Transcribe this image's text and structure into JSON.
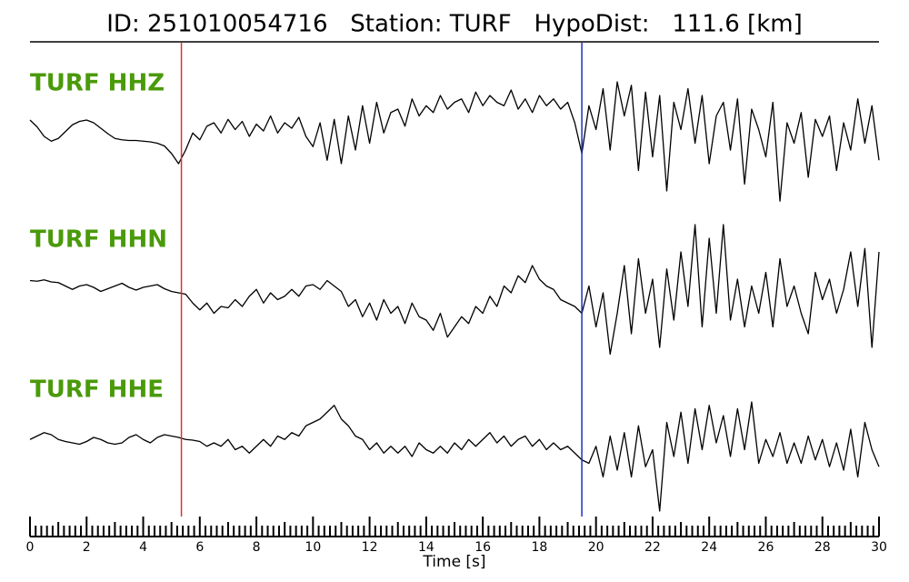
{
  "chart_data": {
    "type": "line",
    "title": "ID: 251010054716   Station: TURF   HypoDist:   111.6 [km]",
    "x_label": "Time [s]",
    "xlim": [
      0,
      30
    ],
    "xticks": [
      0,
      2,
      4,
      6,
      8,
      10,
      12,
      14,
      16,
      18,
      20,
      22,
      24,
      26,
      28,
      30
    ],
    "ylim": [
      -1,
      1
    ],
    "label_color": "#4a9a0a",
    "markers": [
      {
        "x": 5.35,
        "color": "#e03030"
      },
      {
        "x": 19.5,
        "color": "#2030c0"
      }
    ],
    "x": [
      0,
      0.25,
      0.5,
      0.75,
      1,
      1.25,
      1.5,
      1.75,
      2,
      2.25,
      2.5,
      2.75,
      3,
      3.25,
      3.5,
      3.75,
      4,
      4.25,
      4.5,
      4.75,
      5,
      5.25,
      5.5,
      5.75,
      6,
      6.25,
      6.5,
      6.75,
      7,
      7.25,
      7.5,
      7.75,
      8,
      8.25,
      8.5,
      8.75,
      9,
      9.25,
      9.5,
      9.75,
      10,
      10.25,
      10.5,
      10.75,
      11,
      11.25,
      11.5,
      11.75,
      12,
      12.25,
      12.5,
      12.75,
      13,
      13.25,
      13.5,
      13.75,
      14,
      14.25,
      14.5,
      14.75,
      15,
      15.25,
      15.5,
      15.75,
      16,
      16.25,
      16.5,
      16.75,
      17,
      17.25,
      17.5,
      17.75,
      18,
      18.25,
      18.5,
      18.75,
      19,
      19.25,
      19.5,
      19.75,
      20,
      20.25,
      20.5,
      20.75,
      21,
      21.25,
      21.5,
      21.75,
      22,
      22.25,
      22.5,
      22.75,
      23,
      23.25,
      23.5,
      23.75,
      24,
      24.25,
      24.5,
      24.75,
      25,
      25.25,
      25.5,
      25.75,
      26,
      26.25,
      26.5,
      26.75,
      27,
      27.25,
      27.5,
      27.75,
      28,
      28.25,
      28.5,
      28.75,
      29,
      29.25,
      29.5,
      29.75,
      30
    ],
    "series": [
      {
        "name": "TURF HHZ",
        "color": "#000000",
        "values": [
          0.24,
          0.14,
          0.0,
          -0.07,
          -0.03,
          0.07,
          0.17,
          0.22,
          0.24,
          0.2,
          0.12,
          0.04,
          -0.03,
          -0.05,
          -0.06,
          -0.06,
          -0.07,
          -0.08,
          -0.1,
          -0.14,
          -0.25,
          -0.4,
          -0.2,
          0.05,
          -0.05,
          0.15,
          0.2,
          0.05,
          0.25,
          0.1,
          0.22,
          0.0,
          0.18,
          0.08,
          0.3,
          0.05,
          0.2,
          0.12,
          0.28,
          0.0,
          -0.15,
          0.2,
          -0.35,
          0.25,
          -0.4,
          0.3,
          -0.2,
          0.45,
          -0.1,
          0.5,
          0.05,
          0.35,
          0.4,
          0.15,
          0.55,
          0.3,
          0.45,
          0.35,
          0.6,
          0.4,
          0.5,
          0.55,
          0.35,
          0.65,
          0.45,
          0.6,
          0.5,
          0.45,
          0.68,
          0.4,
          0.55,
          0.35,
          0.6,
          0.45,
          0.55,
          0.4,
          0.5,
          0.2,
          -0.25,
          0.45,
          0.1,
          0.7,
          -0.2,
          0.8,
          0.3,
          0.75,
          -0.5,
          0.65,
          -0.3,
          0.6,
          -0.8,
          0.5,
          0.1,
          0.7,
          -0.1,
          0.6,
          -0.4,
          0.3,
          0.5,
          -0.2,
          0.55,
          -0.7,
          0.4,
          0.1,
          -0.3,
          0.5,
          -0.95,
          0.2,
          -0.1,
          0.35,
          -0.6,
          0.25,
          0.0,
          0.3,
          -0.5,
          0.2,
          -0.2,
          0.55,
          -0.1,
          0.45,
          -0.35
        ]
      },
      {
        "name": "TURF HHN",
        "color": "#000000",
        "values": [
          0.18,
          0.17,
          0.19,
          0.16,
          0.15,
          0.1,
          0.05,
          0.1,
          0.12,
          0.08,
          0.02,
          0.06,
          0.1,
          0.14,
          0.08,
          0.04,
          0.08,
          0.1,
          0.12,
          0.06,
          0.02,
          0.0,
          -0.02,
          -0.15,
          -0.25,
          -0.15,
          -0.3,
          -0.2,
          -0.22,
          -0.1,
          -0.2,
          -0.05,
          0.05,
          -0.15,
          0.0,
          -0.1,
          -0.05,
          0.05,
          -0.05,
          0.1,
          0.12,
          0.05,
          0.18,
          0.1,
          0.02,
          -0.2,
          -0.1,
          -0.35,
          -0.15,
          -0.4,
          -0.1,
          -0.3,
          -0.2,
          -0.45,
          -0.15,
          -0.35,
          -0.4,
          -0.55,
          -0.3,
          -0.65,
          -0.5,
          -0.35,
          -0.45,
          -0.2,
          -0.3,
          -0.05,
          -0.2,
          0.1,
          0.0,
          0.25,
          0.15,
          0.4,
          0.2,
          0.1,
          0.05,
          -0.1,
          -0.15,
          -0.2,
          -0.3,
          0.1,
          -0.5,
          0.0,
          -0.9,
          -0.3,
          0.4,
          -0.6,
          0.5,
          -0.3,
          0.2,
          -0.8,
          0.35,
          -0.4,
          0.6,
          -0.2,
          1.0,
          -0.5,
          0.8,
          -0.3,
          1.0,
          -0.4,
          0.2,
          -0.5,
          0.1,
          -0.3,
          0.3,
          -0.5,
          0.5,
          -0.2,
          0.1,
          -0.3,
          -0.6,
          0.3,
          -0.1,
          0.2,
          -0.3,
          0.05,
          0.6,
          -0.2,
          0.65,
          -0.8,
          0.6
        ]
      },
      {
        "name": "TURF HHE",
        "color": "#000000",
        "values": [
          0.05,
          0.1,
          0.15,
          0.12,
          0.05,
          0.02,
          0.0,
          -0.02,
          0.02,
          0.08,
          0.05,
          0.0,
          -0.02,
          0.0,
          0.08,
          0.12,
          0.05,
          0.0,
          0.08,
          0.12,
          0.1,
          0.08,
          0.05,
          0.04,
          0.02,
          -0.05,
          0.0,
          -0.05,
          0.05,
          -0.1,
          -0.05,
          -0.15,
          -0.05,
          0.05,
          -0.05,
          0.1,
          0.05,
          0.15,
          0.1,
          0.25,
          0.3,
          0.35,
          0.45,
          0.55,
          0.35,
          0.25,
          0.1,
          0.05,
          -0.1,
          0.0,
          -0.15,
          -0.05,
          -0.15,
          -0.05,
          -0.2,
          0.0,
          -0.1,
          -0.15,
          -0.05,
          -0.15,
          0.0,
          -0.1,
          0.05,
          -0.05,
          0.05,
          0.15,
          0.0,
          0.1,
          -0.05,
          0.05,
          0.1,
          -0.05,
          0.05,
          -0.1,
          0.0,
          -0.1,
          -0.05,
          -0.15,
          -0.25,
          -0.3,
          -0.05,
          -0.5,
          0.1,
          -0.4,
          0.15,
          -0.5,
          0.25,
          -0.35,
          -0.1,
          -1.0,
          0.3,
          -0.2,
          0.45,
          -0.3,
          0.5,
          -0.1,
          0.55,
          0.0,
          0.4,
          -0.2,
          0.5,
          -0.1,
          0.6,
          -0.3,
          0.05,
          -0.2,
          0.15,
          -0.3,
          0.0,
          -0.3,
          0.1,
          -0.25,
          0.05,
          -0.35,
          0.0,
          -0.4,
          0.2,
          -0.5,
          0.3,
          -0.1,
          -0.35
        ]
      }
    ]
  }
}
